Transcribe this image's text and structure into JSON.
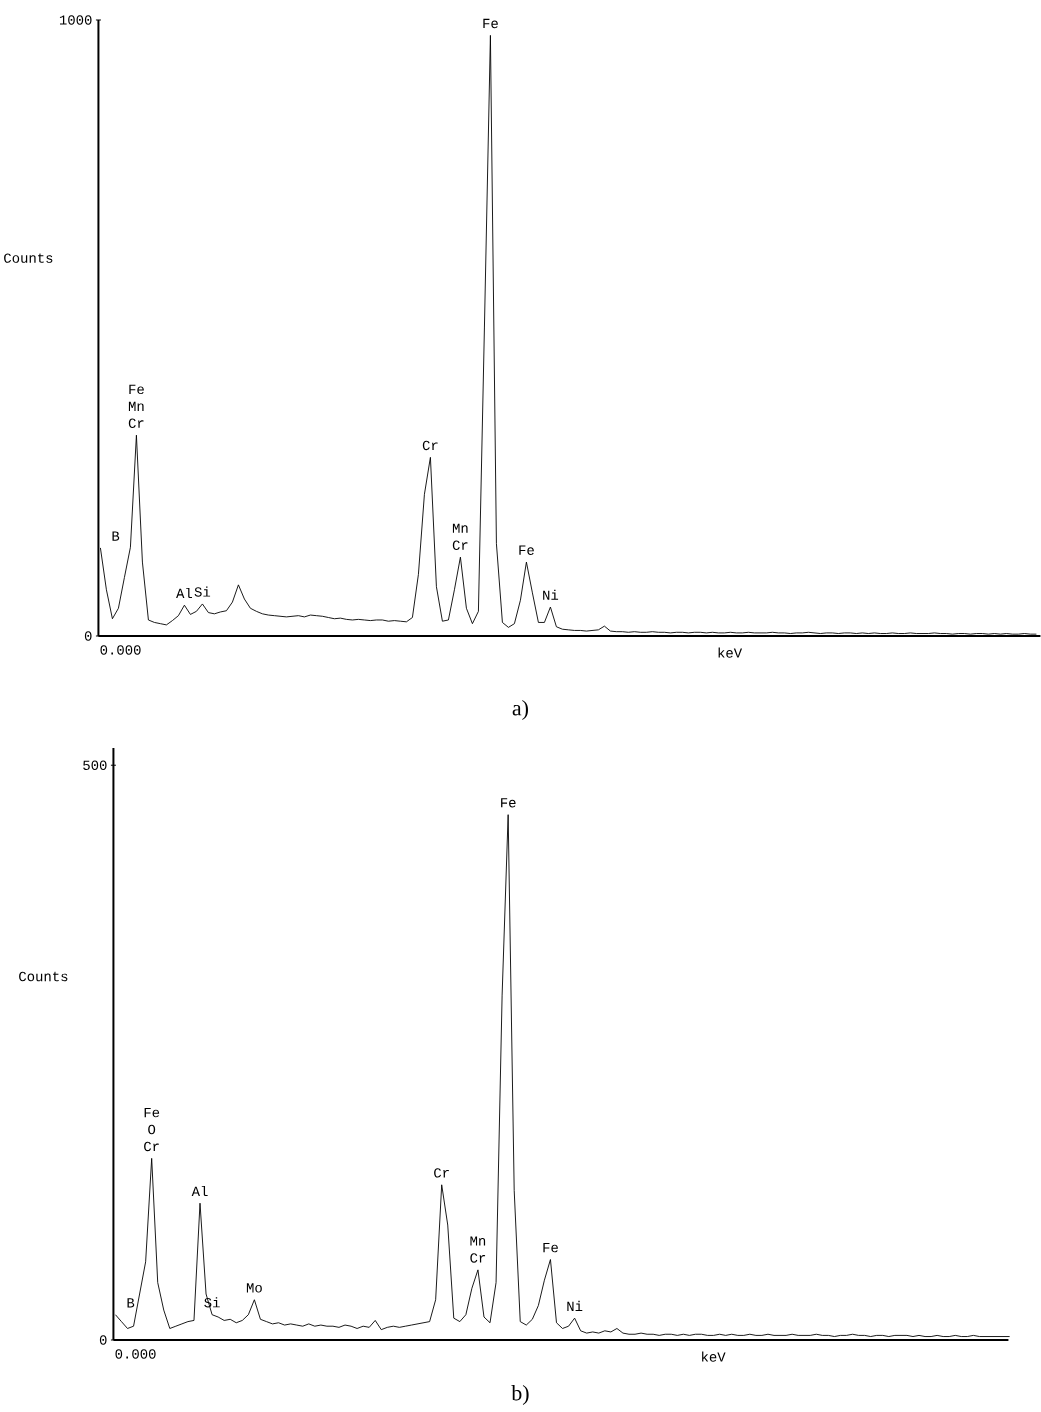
{
  "chart_data": [
    {
      "type": "line",
      "title": "a)",
      "xlabel": "keV",
      "ylabel": "Counts",
      "color": "#000000",
      "categories": [
        null,
        null,
        null,
        null,
        null,
        null,
        null,
        null,
        null,
        null,
        null,
        null,
        null,
        null,
        null,
        null,
        null,
        null,
        null,
        null,
        null,
        null,
        null,
        null,
        null,
        null,
        null,
        null,
        null,
        null,
        null,
        null,
        null,
        null,
        null,
        null,
        null,
        null,
        null,
        null,
        null,
        null,
        null,
        null,
        null,
        null,
        null,
        null,
        null,
        null,
        null,
        null,
        null,
        null,
        null,
        null,
        null,
        null,
        null,
        null,
        null,
        null,
        null,
        null,
        null,
        null,
        null,
        null,
        null,
        null,
        null,
        null,
        null,
        null,
        null,
        null,
        null,
        null,
        null,
        null,
        null,
        null,
        null,
        null,
        null,
        null,
        null,
        null,
        null,
        null,
        null,
        null,
        null,
        null,
        null,
        null,
        null,
        null,
        null,
        null,
        null,
        null,
        null,
        null,
        null,
        null,
        null,
        null,
        null,
        null,
        null,
        null,
        null,
        null,
        null,
        null,
        null,
        null,
        null,
        null,
        null,
        null,
        null,
        null,
        null,
        null,
        null,
        null,
        null,
        null,
        null,
        null,
        null,
        null,
        null,
        null,
        null,
        null,
        null,
        null,
        null,
        null,
        null,
        null,
        null,
        null,
        null,
        null,
        null,
        null,
        null,
        null,
        null,
        null,
        null,
        null,
        null
      ],
      "values": [
        143,
        75,
        28,
        45,
        95,
        144,
        326,
        120,
        26,
        22,
        20,
        18,
        25,
        33,
        50,
        35,
        40,
        52,
        38,
        36,
        39,
        41,
        55,
        83,
        60,
        45,
        40,
        36,
        34,
        33,
        32,
        31,
        32,
        33,
        31,
        34,
        33,
        32,
        30,
        28,
        29,
        27,
        26,
        27,
        26,
        25,
        26,
        26,
        24,
        25,
        24,
        23,
        30,
        100,
        230,
        290,
        80,
        24,
        26,
        75,
        128,
        45,
        20,
        40,
        500,
        975,
        150,
        22,
        14,
        20,
        58,
        120,
        70,
        22,
        22,
        47,
        15,
        11,
        10,
        9,
        9,
        8,
        9,
        10,
        16,
        8,
        7,
        7,
        6,
        7,
        6,
        6,
        7,
        6,
        6,
        5,
        6,
        6,
        5,
        6,
        6,
        5,
        6,
        5,
        5,
        6,
        5,
        5,
        6,
        5,
        5,
        5,
        6,
        5,
        5,
        4,
        5,
        5,
        6,
        5,
        4,
        5,
        5,
        4,
        5,
        5,
        4,
        5,
        4,
        5,
        4,
        4,
        5,
        4,
        4,
        5,
        4,
        4,
        4,
        5,
        4,
        4,
        3,
        4,
        4,
        3,
        4,
        4,
        3,
        4,
        3,
        4,
        3,
        3,
        4,
        3,
        3
      ],
      "value_labels": [
        "B",
        null,
        null,
        null,
        null,
        null,
        "Fe Mn Cr",
        null,
        null,
        null,
        null,
        null,
        null,
        null,
        "Al",
        null,
        null,
        "Si",
        null,
        null,
        null,
        null,
        null,
        null,
        null,
        null,
        null,
        null,
        null,
        null,
        null,
        null,
        null,
        null,
        null,
        null,
        null,
        null,
        null,
        null,
        null,
        null,
        null,
        null,
        null,
        null,
        null,
        null,
        null,
        null,
        null,
        null,
        null,
        null,
        null,
        "Cr",
        null,
        null,
        null,
        null,
        "Mn Cr",
        null,
        null,
        null,
        null,
        "Fe",
        null,
        null,
        null,
        null,
        null,
        "Fe",
        null,
        null,
        null,
        "Ni",
        null,
        null,
        null,
        null,
        null,
        null,
        null,
        null,
        null,
        null,
        null,
        null,
        null,
        null,
        null,
        null,
        null,
        null,
        null,
        null,
        null,
        null,
        null,
        null,
        null,
        null,
        null,
        null,
        null,
        null,
        null,
        null,
        null,
        null,
        null,
        null,
        null,
        null,
        null,
        null,
        null,
        null,
        null,
        null,
        null,
        null,
        null,
        null,
        null,
        null,
        null,
        null,
        null,
        null,
        null,
        null,
        null,
        null,
        null,
        null,
        null,
        null,
        null,
        null,
        null,
        null,
        null,
        null,
        null,
        null,
        null,
        null,
        null,
        null,
        null,
        null,
        null,
        null,
        null,
        null,
        null
      ],
      "ylim": [
        0,
        1000
      ],
      "yticks": [
        0,
        1000
      ],
      "tick_labels": "y",
      "annotations": [
        "0.000"
      ]
    },
    {
      "type": "line",
      "title": "b)",
      "xlabel": "keV",
      "ylabel": "Counts",
      "color": "#000000",
      "categories": [
        null,
        null,
        null,
        null,
        null,
        null,
        null,
        null,
        null,
        null,
        null,
        null,
        null,
        null,
        null,
        null,
        null,
        null,
        null,
        null,
        null,
        null,
        null,
        null,
        null,
        null,
        null,
        null,
        null,
        null,
        null,
        null,
        null,
        null,
        null,
        null,
        null,
        null,
        null,
        null,
        null,
        null,
        null,
        null,
        null,
        null,
        null,
        null,
        null,
        null,
        null,
        null,
        null,
        null,
        null,
        null,
        null,
        null,
        null,
        null,
        null,
        null,
        null,
        null,
        null,
        null,
        null,
        null,
        null,
        null,
        null,
        null,
        null,
        null,
        null,
        null,
        null,
        null,
        null,
        null,
        null,
        null,
        null,
        null,
        null,
        null,
        null,
        null,
        null,
        null,
        null,
        null,
        null,
        null,
        null,
        null,
        null,
        null,
        null,
        null,
        null,
        null,
        null,
        null,
        null,
        null,
        null,
        null,
        null,
        null,
        null,
        null,
        null,
        null,
        null,
        null,
        null,
        null,
        null,
        null,
        null,
        null,
        null,
        null,
        null,
        null,
        null,
        null,
        null,
        null,
        null,
        null,
        null,
        null,
        null,
        null,
        null,
        null,
        null,
        null,
        null,
        null,
        null,
        null,
        null,
        null,
        null,
        null,
        null
      ],
      "values": [
        22,
        16,
        10,
        12,
        40,
        68,
        158,
        50,
        26,
        10,
        12,
        14,
        16,
        17,
        119,
        40,
        22,
        20,
        17,
        18,
        15,
        17,
        22,
        35,
        18,
        16,
        14,
        15,
        13,
        14,
        13,
        12,
        14,
        12,
        13,
        12,
        12,
        11,
        13,
        12,
        10,
        12,
        11,
        17,
        9,
        11,
        12,
        11,
        12,
        13,
        14,
        15,
        16,
        35,
        135,
        100,
        19,
        16,
        22,
        45,
        61,
        20,
        15,
        50,
        300,
        457,
        130,
        16,
        13,
        18,
        30,
        52,
        70,
        15,
        10,
        12,
        19,
        8,
        6,
        7,
        6,
        8,
        7,
        10,
        6,
        5,
        5,
        6,
        5,
        5,
        4,
        5,
        5,
        4,
        5,
        4,
        5,
        5,
        4,
        4,
        5,
        4,
        5,
        4,
        4,
        5,
        4,
        4,
        5,
        4,
        4,
        4,
        5,
        4,
        4,
        4,
        5,
        4,
        4,
        3,
        4,
        4,
        5,
        4,
        4,
        3,
        4,
        4,
        3,
        4,
        4,
        4,
        3,
        4,
        3,
        3,
        4,
        3,
        3,
        4,
        3,
        3,
        4,
        3,
        3,
        3,
        3,
        3,
        3
      ],
      "value_labels": [
        "B",
        null,
        null,
        null,
        null,
        null,
        "Fe O Cr",
        null,
        null,
        null,
        null,
        null,
        null,
        null,
        "Al",
        null,
        "Si",
        null,
        null,
        null,
        null,
        null,
        null,
        "Mo",
        null,
        null,
        null,
        null,
        null,
        null,
        null,
        null,
        null,
        null,
        null,
        null,
        null,
        null,
        null,
        null,
        null,
        null,
        null,
        null,
        null,
        null,
        null,
        null,
        null,
        null,
        null,
        null,
        null,
        null,
        "Cr",
        null,
        null,
        null,
        null,
        null,
        "Mn Cr",
        null,
        null,
        null,
        null,
        "Fe",
        null,
        null,
        null,
        null,
        null,
        null,
        "Fe",
        null,
        null,
        null,
        "Ni",
        null,
        null,
        null,
        null,
        null,
        null,
        null,
        null,
        null,
        null,
        null,
        null,
        null,
        null,
        null,
        null,
        null,
        null,
        null,
        null,
        null,
        null,
        null,
        null,
        null,
        null,
        null,
        null,
        null,
        null,
        null,
        null,
        null,
        null,
        null,
        null,
        null,
        null,
        null,
        null,
        null,
        null,
        null,
        null,
        null,
        null,
        null,
        null,
        null,
        null,
        null,
        null,
        null,
        null,
        null,
        null,
        null,
        null,
        null,
        null,
        null,
        null,
        null,
        null,
        null,
        null,
        null,
        null,
        null,
        null,
        null,
        null
      ],
      "ylim": [
        0,
        515
      ],
      "yticks": [
        0,
        500
      ],
      "tick_labels": "y",
      "annotations": [
        "0.000"
      ]
    }
  ]
}
